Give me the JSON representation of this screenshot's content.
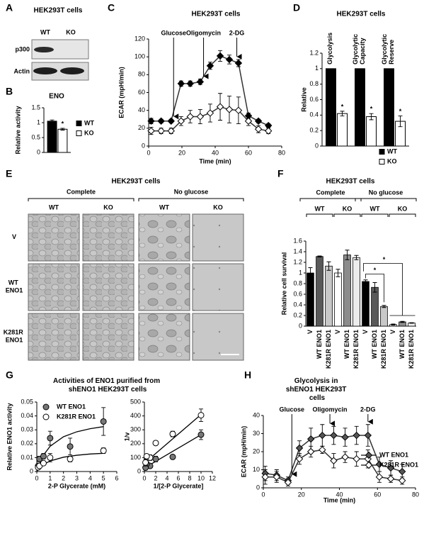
{
  "panel_labels": [
    "A",
    "B",
    "C",
    "D",
    "E",
    "F",
    "G",
    "H"
  ],
  "blot": {
    "title": "HEK293T cells",
    "columns": [
      "WT",
      "KO"
    ],
    "rows": [
      "p300",
      "Actin"
    ]
  },
  "micrographs": {
    "title": "HEK293T cells",
    "conditions": [
      "Complete",
      "No glucose"
    ],
    "genotypes": [
      "WT",
      "KO",
      "WT",
      "KO"
    ],
    "rows": [
      "V",
      "WT ENO1",
      "K281R ENO1"
    ]
  },
  "chart_data": [
    {
      "type": "bar",
      "title": "ENO",
      "ylabel": "Relative activity",
      "ylim": [
        0,
        1.5
      ],
      "yticks": [
        0,
        0.5,
        1,
        1.5
      ],
      "series": [
        {
          "name": "WT",
          "color": "#000000",
          "values": [
            1.05
          ],
          "errors": [
            0.04
          ]
        },
        {
          "name": "KO",
          "color": "#ffffff",
          "values": [
            0.78
          ],
          "errors": [
            0.03
          ]
        }
      ],
      "significance": "*"
    },
    {
      "type": "line",
      "title": "HEK293T cells",
      "xlabel": "Time (min)",
      "ylabel": "ECAR (mpH/min)",
      "xlim": [
        0,
        80
      ],
      "xticks": [
        0,
        20,
        40,
        60,
        80
      ],
      "ylim": [
        0,
        120
      ],
      "yticks": [
        0,
        20,
        40,
        60,
        80,
        100,
        120
      ],
      "x": [
        1.5,
        7.5,
        13.5,
        19.5,
        25,
        31,
        37,
        43,
        48.5,
        54,
        60,
        66,
        72
      ],
      "series": [
        {
          "color": "#000000",
          "values": [
            28,
            28,
            28,
            70,
            70,
            72,
            90,
            101,
            97,
            93,
            34,
            28,
            23
          ],
          "errors": [
            3,
            2,
            2,
            3,
            3,
            3,
            4,
            6,
            5,
            4,
            3,
            2,
            2
          ]
        },
        {
          "color": "#ffffff",
          "values": [
            17,
            17,
            17,
            28,
            33,
            33,
            37,
            44,
            41,
            40,
            28,
            19,
            17
          ],
          "errors": [
            4,
            3,
            3,
            5,
            7,
            8,
            10,
            15,
            15,
            15,
            5,
            4,
            3
          ]
        }
      ],
      "annotations": [
        {
          "text": "Glucose",
          "x": 15
        },
        {
          "text": "Oligomycin",
          "x": 33
        },
        {
          "text": "2-DG",
          "x": 53
        }
      ]
    },
    {
      "type": "bar",
      "title": "HEK293T cells",
      "ylabel": "Relative",
      "ylim": [
        0,
        1.2
      ],
      "yticks": [
        0,
        0.2,
        0.4,
        0.6,
        0.8,
        1,
        1.2
      ],
      "categories": [
        "Glycolysis",
        "Glycolytic Capacity",
        "Glycolytic Reserve"
      ],
      "series": [
        {
          "name": "WT",
          "color": "#000000",
          "values": [
            1,
            1,
            1
          ]
        },
        {
          "name": "KO",
          "color": "#ffffff",
          "values": [
            0.42,
            0.38,
            0.32
          ],
          "errors": [
            0.03,
            0.04,
            0.07
          ]
        }
      ],
      "significance": [
        "*",
        "*",
        "*"
      ]
    },
    {
      "type": "grouped_bar",
      "title": "HEK293T cells",
      "ylabel": "Relative cell survival",
      "ylim": [
        0,
        1.6
      ],
      "yticks": [
        0,
        0.2,
        0.4,
        0.6,
        0.8,
        1,
        1.2,
        1.4,
        1.6
      ],
      "groups": [
        {
          "name": "Complete",
          "subgroups": [
            {
              "name": "WT",
              "categories": [
                "V",
                "WT ENO1",
                "K281R ENO1"
              ],
              "colors": [
                "#000000",
                "#595959",
                "#c8c8c8"
              ],
              "values": [
                1.0,
                1.31,
                1.13
              ],
              "errors": [
                0.1,
                0.01,
                0.08
              ]
            },
            {
              "name": "KO",
              "categories": [
                "V",
                "WT ENO1",
                "K281R ENO1"
              ],
              "colors": [
                "#ffffff",
                "#8c8c8c",
                "#ececec"
              ],
              "values": [
                1.0,
                1.34,
                1.29
              ],
              "errors": [
                0.07,
                0.09,
                0.04
              ]
            }
          ]
        },
        {
          "name": "No glucose",
          "subgroups": [
            {
              "name": "WT",
              "categories": [
                "V",
                "WT ENO1",
                "K281R ENO1"
              ],
              "colors": [
                "#000000",
                "#595959",
                "#c8c8c8"
              ],
              "values": [
                0.84,
                0.73,
                0.37
              ],
              "errors": [
                0.03,
                0.09,
                0.02
              ]
            },
            {
              "name": "KO",
              "categories": [
                "V",
                "WT ENO1",
                "K281R ENO1"
              ],
              "colors": [
                "#ffffff",
                "#8c8c8c",
                "#ececec"
              ],
              "values": [
                0.03,
                0.08,
                0.06
              ],
              "errors": [
                0.01,
                0.01,
                0.005
              ]
            }
          ]
        }
      ],
      "annotations": [
        "*",
        "*"
      ]
    },
    {
      "type": "scatter",
      "title": "Activities of ENO1 purified from shENO1 HEK293T cells",
      "xlabel": "2-P Glycerate (mM)",
      "ylabel": "Relative ENO1 activity",
      "xlim": [
        0,
        6
      ],
      "xticks": [
        0,
        1,
        2,
        3,
        4,
        5,
        6
      ],
      "ylim": [
        0,
        0.05
      ],
      "yticks": [
        0,
        0.01,
        0.02,
        0.03,
        0.04,
        0.05
      ],
      "series": [
        {
          "name": "WT ENO1",
          "color": "#777777",
          "x": [
            0.1,
            0.2,
            0.5,
            1,
            2.5,
            5
          ],
          "values": [
            0.004,
            0.009,
            0.011,
            0.024,
            0.018,
            0.036
          ],
          "errors": [
            0.001,
            0.002,
            0.002,
            0.005,
            0.006,
            0.01
          ],
          "fit": {
            "x": [
              0,
              0.1,
              0.5,
              1,
              2,
              3,
              4,
              5
            ],
            "values": [
              0,
              0.0031,
              0.0118,
              0.0182,
              0.025,
              0.0286,
              0.0308,
              0.0323
            ]
          }
        },
        {
          "name": "K281R ENO1",
          "color": "#ffffff",
          "x": [
            0.1,
            0.2,
            0.5,
            1,
            2.5,
            5
          ],
          "values": [
            0.003,
            0.004,
            0.006,
            0.01,
            0.009,
            0.015
          ],
          "errors": [
            0.001,
            0.001,
            0.001,
            0.003,
            0.002,
            0.002
          ],
          "fit": {
            "x": [
              0,
              0.1,
              0.5,
              1,
              2,
              3,
              4,
              5
            ],
            "values": [
              0,
              0.0013,
              0.005,
              0.0076,
              0.0103,
              0.0117,
              0.0126,
              0.0131
            ]
          }
        }
      ]
    },
    {
      "type": "scatter",
      "xlabel": "1/[2-P Glycerate]",
      "ylabel": "1/v",
      "xlim": [
        0,
        12
      ],
      "xticks": [
        0,
        2,
        4,
        6,
        8,
        10,
        12
      ],
      "ylim": [
        0,
        500
      ],
      "yticks": [
        0,
        100,
        200,
        300,
        400,
        500
      ],
      "series": [
        {
          "color": "#777777",
          "x": [
            10,
            5,
            2,
            1,
            0.4,
            0.2
          ],
          "values": [
            265,
            105,
            90,
            40,
            55,
            28
          ],
          "errors": [
            35,
            15,
            20,
            10,
            15,
            5
          ],
          "fit": {
            "x": [
              0,
              10
            ],
            "values": [
              25,
              265
            ]
          }
        },
        {
          "color": "#ffffff",
          "x": [
            10,
            5,
            2,
            1,
            0.4,
            0.2
          ],
          "values": [
            405,
            270,
            205,
            100,
            110,
            65
          ],
          "errors": [
            45,
            20,
            15,
            20,
            15,
            25
          ],
          "fit": {
            "x": [
              0,
              10
            ],
            "values": [
              60,
              410
            ]
          }
        }
      ]
    },
    {
      "type": "line",
      "title": "Glycolysis in shENO1 HEK293T cells",
      "xlabel": "Time (min)",
      "ylabel": "ECAR (mpH/min)",
      "xlim": [
        0,
        80
      ],
      "xticks": [
        0,
        20,
        40,
        60,
        80
      ],
      "ylim": [
        0,
        40
      ],
      "yticks": [
        0,
        10,
        20,
        30,
        40
      ],
      "x": [
        1,
        7,
        13,
        19,
        25,
        31,
        37,
        43,
        49,
        55,
        61,
        67,
        73
      ],
      "series": [
        {
          "name": "WT ENO1",
          "color": "#555555",
          "values": [
            8,
            7,
            4,
            22,
            27,
            29,
            29,
            28,
            29,
            29,
            13,
            11,
            9
          ],
          "errors": [
            4,
            3,
            2,
            4,
            6,
            6,
            5,
            5,
            5,
            6,
            4,
            4,
            4
          ]
        },
        {
          "name": "K281R ENO1",
          "color": "#ffffff",
          "values": [
            6,
            6,
            3,
            16,
            20,
            21,
            15,
            17,
            16,
            16,
            6,
            5,
            4
          ],
          "errors": [
            4,
            3,
            2,
            3,
            3,
            2,
            4,
            3,
            4,
            5,
            3,
            2,
            2
          ]
        }
      ],
      "annotations": [
        {
          "text": "Glucose",
          "x": 15
        },
        {
          "text": "Oligomycin",
          "x": 35
        },
        {
          "text": "2-DG",
          "x": 55
        }
      ]
    }
  ]
}
